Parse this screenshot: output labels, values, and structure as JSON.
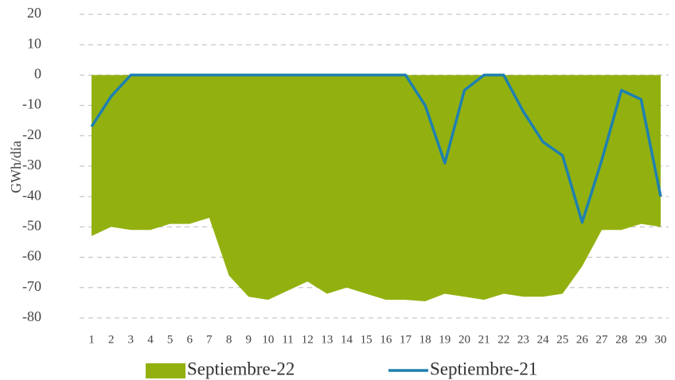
{
  "chart_data": {
    "type": "area_line",
    "y_label": "GWh/día",
    "categories": [
      "1",
      "2",
      "3",
      "4",
      "5",
      "6",
      "7",
      "8",
      "9",
      "10",
      "11",
      "12",
      "13",
      "14",
      "15",
      "16",
      "17",
      "18",
      "19",
      "20",
      "21",
      "22",
      "23",
      "24",
      "25",
      "26",
      "27",
      "28",
      "29",
      "30"
    ],
    "series": [
      {
        "name": "Septiembre-22",
        "kind": "area",
        "color": "#92b110",
        "values": [
          -53,
          -50,
          -51,
          -51,
          -49,
          -49,
          -47,
          -66,
          -73,
          -74,
          -71,
          -68,
          -72,
          -70,
          -72,
          -74,
          -74,
          -74.5,
          -72,
          -73,
          -74,
          -72,
          -73,
          -73,
          -72,
          -63,
          -51,
          -51,
          -49,
          -50
        ]
      },
      {
        "name": "Septiembre-21",
        "kind": "line",
        "color": "#1f80b0",
        "values": [
          -17,
          -7,
          0,
          0,
          0,
          0,
          0,
          0,
          0,
          0,
          0,
          0,
          0,
          0,
          0,
          0,
          0,
          -10,
          -29,
          -5,
          0,
          0,
          -12,
          -22,
          -26.5,
          -48.5,
          -28,
          -5,
          -8,
          -40
        ]
      }
    ],
    "ylim": [
      -80,
      20
    ],
    "yticks": [
      -80,
      -70,
      -60,
      -50,
      -40,
      -30,
      -20,
      -10,
      0,
      10,
      20
    ],
    "grid": true
  }
}
